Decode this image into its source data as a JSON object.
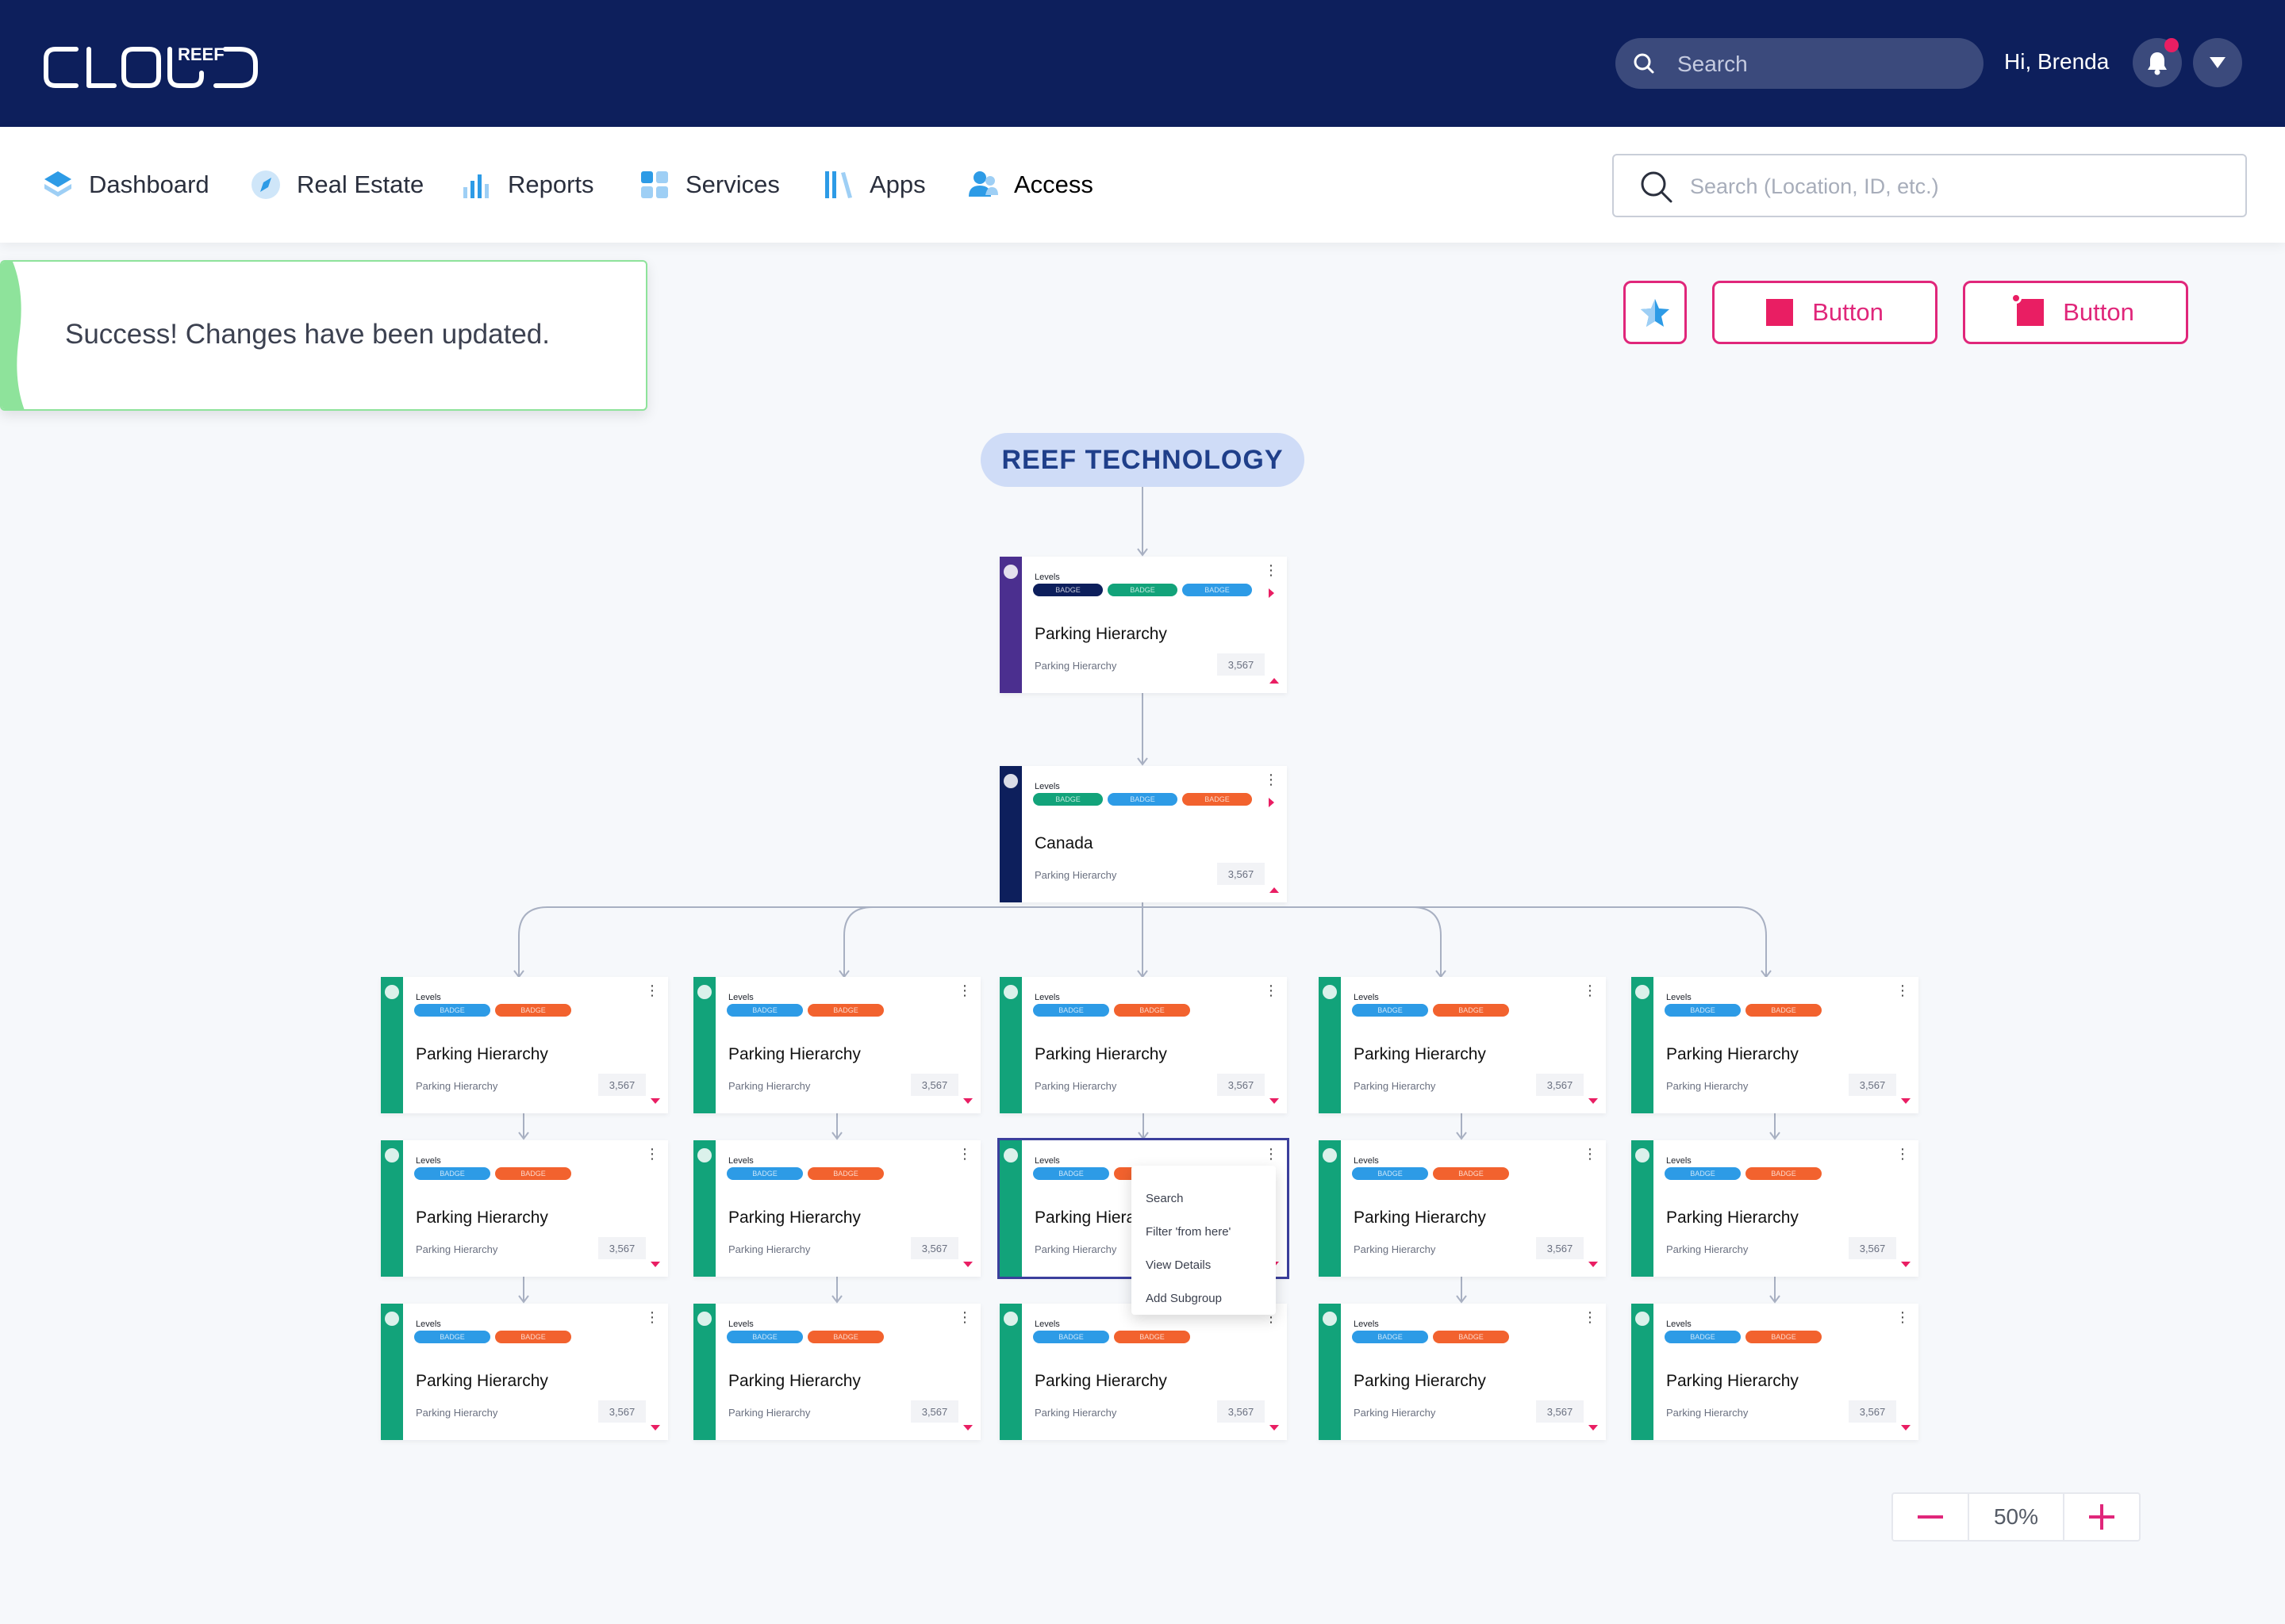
{
  "header": {
    "logo_text": "CLOUD",
    "logo_superscript": "REEF",
    "search_placeholder": "Search",
    "greeting": "Hi, Brenda",
    "notification_dot_color": "#e91e63"
  },
  "nav": {
    "items": [
      {
        "label": "Dashboard",
        "icon": "layers-icon"
      },
      {
        "label": "Real Estate",
        "icon": "compass-icon"
      },
      {
        "label": "Reports",
        "icon": "bar-chart-icon"
      },
      {
        "label": "Services",
        "icon": "grid-icon"
      },
      {
        "label": "Apps",
        "icon": "library-icon"
      },
      {
        "label": "Access",
        "icon": "users-icon",
        "active": true
      }
    ],
    "search_placeholder": "Search (Location, ID, etc.)"
  },
  "toast": {
    "message": "Success! Changes have been updated.",
    "status_color": "#8ee39b"
  },
  "actions": {
    "button1_label": "Button",
    "button2_label": "Button",
    "accent_color": "#e0267a"
  },
  "tree": {
    "root_label": "REEF TECHNOLOGY",
    "level1": {
      "label_small": "Levels",
      "title": "Parking Hierarchy",
      "subtitle": "Parking Hierarchy",
      "count": "3,567",
      "badges": [
        "BADGE",
        "BADGE",
        "BADGE"
      ],
      "bar_color": "#4b2f8f"
    },
    "level2": {
      "label_small": "Levels",
      "title": "Canada",
      "subtitle": "Parking Hierarchy",
      "count": "3,567",
      "badges": [
        "BADGE",
        "BADGE",
        "BADGE"
      ],
      "bar_color": "#0d1f5c"
    },
    "grid_card": {
      "label_small": "Levels",
      "title": "Parking Hierarchy",
      "subtitle": "Parking Hierarchy",
      "count": "3,567",
      "badges": [
        "BADGE",
        "BADGE"
      ],
      "bar_color": "#12a37a"
    },
    "selected_card": {
      "label_small": "Levels",
      "title": "Parking Hierarchy",
      "subtitle": "Parking Hierarchy",
      "badges": [
        "BADGE"
      ]
    }
  },
  "context_menu": {
    "items": [
      "Search",
      "Filter 'from here'",
      "View Details",
      "Add Subgroup"
    ]
  },
  "zoom": {
    "value": "50%"
  },
  "colors": {
    "navy": "#0d1f5c",
    "green": "#12a37a",
    "blue_badge": "#2d9be6",
    "orange_badge": "#f2622e",
    "pink": "#e91e63"
  }
}
